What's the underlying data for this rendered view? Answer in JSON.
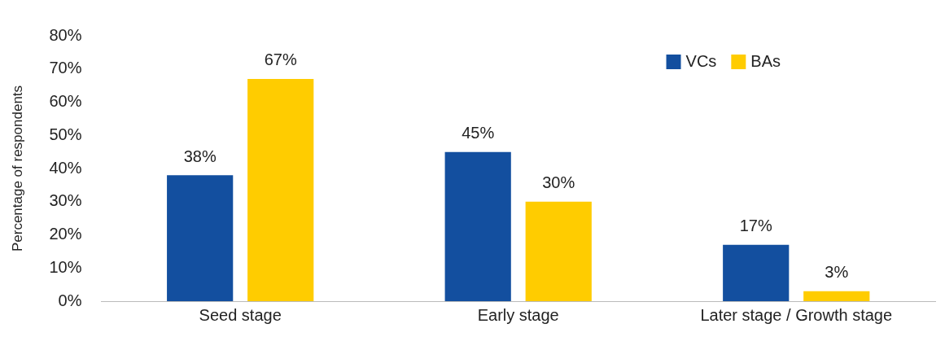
{
  "chart_data": {
    "type": "bar",
    "ylabel": "Percentage of respondents",
    "categories": [
      "Seed stage",
      "Early stage",
      "Later stage / Growth stage"
    ],
    "series": [
      {
        "name": "VCs",
        "color": "#134f9f",
        "values": [
          38,
          45,
          17
        ],
        "value_labels": [
          "38%",
          "45%",
          "17%"
        ]
      },
      {
        "name": "BAs",
        "color": "#ffcc00",
        "values": [
          67,
          30,
          3
        ],
        "value_labels": [
          "67%",
          "30%",
          "3%"
        ]
      }
    ],
    "ylim": [
      0,
      80
    ],
    "yticks": [
      {
        "value": 0,
        "label": "0%"
      },
      {
        "value": 10,
        "label": "10%"
      },
      {
        "value": 20,
        "label": "20%"
      },
      {
        "value": 30,
        "label": "30%"
      },
      {
        "value": 40,
        "label": "40%"
      },
      {
        "value": 50,
        "label": "50%"
      },
      {
        "value": 60,
        "label": "60%"
      },
      {
        "value": 70,
        "label": "70%"
      },
      {
        "value": 80,
        "label": "80%"
      }
    ],
    "grid": false,
    "legend": "top right"
  }
}
